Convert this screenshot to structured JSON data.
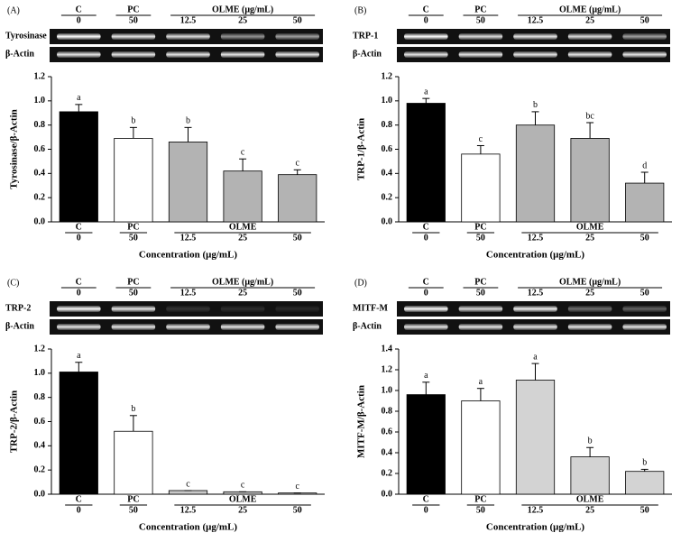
{
  "chart_data": [
    {
      "type": "bar",
      "panel": "(A)",
      "blot": {
        "groups": [
          "C",
          "PC",
          "OLME (μg/mL)"
        ],
        "doses": [
          "0",
          "50",
          "12.5",
          "25",
          "50"
        ],
        "rows": [
          "Tyrosinase",
          "β-Actin"
        ]
      },
      "y_label": "Tyrosinase/β-Actin",
      "x_label": "Concentration (μg/mL)",
      "groups": [
        "C",
        "PC",
        "OLME"
      ],
      "categories": [
        "0",
        "50",
        "12.5",
        "25",
        "50"
      ],
      "values": [
        0.91,
        0.69,
        0.66,
        0.42,
        0.39
      ],
      "errors": [
        0.06,
        0.09,
        0.12,
        0.1,
        0.04
      ],
      "letters": [
        "a",
        "b",
        "b",
        "c",
        "c"
      ],
      "colors": [
        "#000000",
        "#ffffff",
        "#b3b3b3",
        "#b3b3b3",
        "#b3b3b3"
      ],
      "ylim": [
        0,
        1.2
      ],
      "yticks": [
        {
          "value": 0,
          "label": "0.0"
        },
        {
          "value": 0.2,
          "label": "0.2"
        },
        {
          "value": 0.4,
          "label": "0.4"
        },
        {
          "value": 0.6,
          "label": "0.6"
        },
        {
          "value": 0.8,
          "label": "0.8"
        },
        {
          "value": 1,
          "label": "1.0"
        },
        {
          "value": 1.2,
          "label": "1.2"
        }
      ]
    },
    {
      "type": "bar",
      "panel": "(B)",
      "blot": {
        "groups": [
          "C",
          "PC",
          "OLME (μg/mL)"
        ],
        "doses": [
          "0",
          "50",
          "12.5",
          "25",
          "50"
        ],
        "rows": [
          "TRP-1",
          "β-Actin"
        ]
      },
      "y_label": "TRP-1/β-Actin",
      "x_label": "Concentration (μg/mL)",
      "groups": [
        "C",
        "PC",
        "OLME"
      ],
      "categories": [
        "0",
        "50",
        "12.5",
        "25",
        "50"
      ],
      "values": [
        0.98,
        0.56,
        0.8,
        0.69,
        0.32
      ],
      "errors": [
        0.04,
        0.07,
        0.11,
        0.13,
        0.09
      ],
      "letters": [
        "a",
        "c",
        "b",
        "bc",
        "d"
      ],
      "colors": [
        "#000000",
        "#ffffff",
        "#b3b3b3",
        "#b3b3b3",
        "#b3b3b3"
      ],
      "ylim": [
        0,
        1.2
      ],
      "yticks": [
        {
          "value": 0,
          "label": "0.0"
        },
        {
          "value": 0.2,
          "label": "0.2"
        },
        {
          "value": 0.4,
          "label": "0.4"
        },
        {
          "value": 0.6,
          "label": "0.6"
        },
        {
          "value": 0.8,
          "label": "0.8"
        },
        {
          "value": 1,
          "label": "1.0"
        },
        {
          "value": 1.2,
          "label": "1.2"
        }
      ]
    },
    {
      "type": "bar",
      "panel": "(C)",
      "blot": {
        "groups": [
          "C",
          "PC",
          "OLME (μg/mL)"
        ],
        "doses": [
          "0",
          "50",
          "12.5",
          "25",
          "50"
        ],
        "rows": [
          "TRP-2",
          "β-Actin"
        ]
      },
      "y_label": "TRP-2/β-Actin",
      "x_label": "Concentration (μg/mL)",
      "groups": [
        "C",
        "PC",
        "OLME"
      ],
      "categories": [
        "0",
        "50",
        "12.5",
        "25",
        "50"
      ],
      "values": [
        1.01,
        0.52,
        0.03,
        0.02,
        0.01
      ],
      "errors": [
        0.08,
        0.13,
        0,
        0,
        0
      ],
      "letters": [
        "a",
        "b",
        "c",
        "c",
        "c"
      ],
      "colors": [
        "#000000",
        "#ffffff",
        "#c8c8c8",
        "#c8c8c8",
        "#c8c8c8"
      ],
      "ylim": [
        0,
        1.2
      ],
      "yticks": [
        {
          "value": 0,
          "label": "0.0"
        },
        {
          "value": 0.2,
          "label": "0.2"
        },
        {
          "value": 0.4,
          "label": "0.4"
        },
        {
          "value": 0.6,
          "label": "0.6"
        },
        {
          "value": 0.8,
          "label": "0.8"
        },
        {
          "value": 1,
          "label": "1.0"
        },
        {
          "value": 1.2,
          "label": "1.2"
        }
      ]
    },
    {
      "type": "bar",
      "panel": "(D)",
      "blot": {
        "groups": [
          "C",
          "PC",
          "OLME (μg/mL)"
        ],
        "doses": [
          "0",
          "50",
          "12.5",
          "25",
          "50"
        ],
        "rows": [
          "MITF-M",
          "β-Actin"
        ]
      },
      "y_label": "MITF-M/β-Actin",
      "x_label": "Concentration (μg/mL)",
      "groups": [
        "C",
        "PC",
        "OLME"
      ],
      "categories": [
        "0",
        "50",
        "12.5",
        "25",
        "50"
      ],
      "values": [
        0.96,
        0.9,
        1.1,
        0.36,
        0.22
      ],
      "errors": [
        0.12,
        0.12,
        0.16,
        0.09,
        0.02
      ],
      "letters": [
        "a",
        "a",
        "a",
        "b",
        "b"
      ],
      "colors": [
        "#000000",
        "#ffffff",
        "#d3d3d3",
        "#d3d3d3",
        "#d3d3d3"
      ],
      "ylim": [
        0,
        1.4
      ],
      "yticks": [
        {
          "value": 0,
          "label": "0.0"
        },
        {
          "value": 0.2,
          "label": "0.2"
        },
        {
          "value": 0.4,
          "label": "0.4"
        },
        {
          "value": 0.6,
          "label": "0.6"
        },
        {
          "value": 0.8,
          "label": "0.8"
        },
        {
          "value": 1,
          "label": "1.0"
        },
        {
          "value": 1.2,
          "label": "1.2"
        },
        {
          "value": 1.4,
          "label": "1.4"
        }
      ]
    }
  ]
}
